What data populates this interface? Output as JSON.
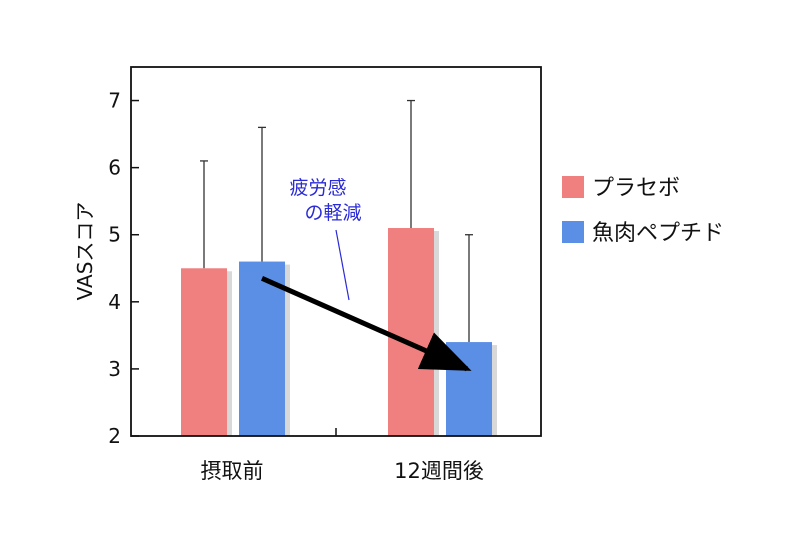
{
  "chart_data": {
    "type": "bar",
    "categories": [
      "摂取前",
      "12週間後"
    ],
    "series": [
      {
        "name": "プラセボ",
        "values": [
          4.5,
          5.1
        ],
        "error_upper": [
          6.1,
          7.0
        ],
        "color": "#f08080"
      },
      {
        "name": "魚肉ペプチド",
        "values": [
          4.6,
          3.4
        ],
        "error_upper": [
          6.6,
          5.0
        ],
        "color": "#5b8fe6"
      }
    ],
    "ylabel": "VASスコア",
    "ylim": [
      2,
      7.5
    ],
    "yticks": [
      2,
      3,
      4,
      5,
      6,
      7
    ],
    "legend": "right",
    "grid": false,
    "annotation": {
      "lines": [
        "疲労感",
        "の軽減"
      ],
      "color": "#2b2bd6"
    },
    "arrow": {
      "from": {
        "category": 0,
        "series": 1,
        "y": 4.35
      },
      "to": {
        "category": 1,
        "series": 1,
        "y": 3.0
      },
      "color": "#000000"
    }
  }
}
